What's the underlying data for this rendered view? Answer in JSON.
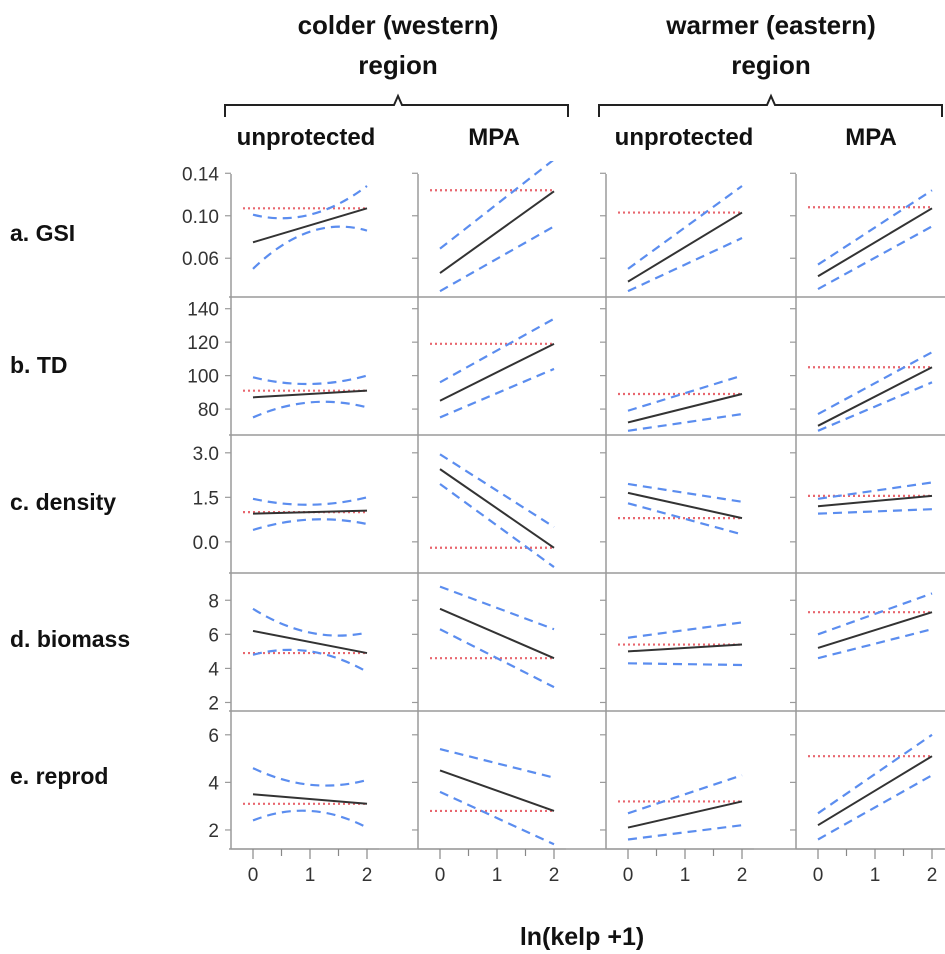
{
  "regions": [
    {
      "line1": "colder (western)",
      "line2": "region"
    },
    {
      "line1": "warmer (eastern)",
      "line2": "region"
    }
  ],
  "columns": [
    "unprotected",
    "MPA",
    "unprotected",
    "MPA"
  ],
  "x_axis_label": "ln(kelp +1)",
  "colors": {
    "fit": "#333333",
    "ci": "#5b8def",
    "reference": "#e8666e",
    "axis": "#9a9a9a"
  },
  "chart_data": {
    "type": "line",
    "title": "",
    "xlabel": "ln(kelp +1)",
    "x_ticks": [
      0,
      1,
      2
    ],
    "x_range": [
      -0.45,
      2.1
    ],
    "rows": [
      {
        "label": "a. GSI",
        "y_ticks": [
          "0.14",
          "0.10",
          "0.06"
        ],
        "y_tick_values": [
          0.14,
          0.1,
          0.06
        ],
        "ylim": [
          0.0235,
          0.1525
        ],
        "panels": [
          {
            "fit": [
              0.075,
              0.107
            ],
            "upper": [
              0.101,
              0.101,
              0.128
            ],
            "lower": [
              0.05,
              0.085,
              0.086
            ],
            "reference": 0.107
          },
          {
            "fit": [
              0.046,
              0.123
            ],
            "upper": [
              0.069,
              0.153
            ],
            "lower": [
              0.029,
              0.09
            ],
            "reference": 0.124
          },
          {
            "fit": [
              0.038,
              0.103
            ],
            "upper": [
              0.05,
              0.128
            ],
            "lower": [
              0.029,
              0.079
            ],
            "reference": 0.103
          },
          {
            "fit": [
              0.043,
              0.107
            ],
            "upper": [
              0.054,
              0.124
            ],
            "lower": [
              0.031,
              0.09
            ],
            "reference": 0.108
          }
        ]
      },
      {
        "label": "b. TD",
        "y_ticks": [
          "140",
          "120",
          "100",
          "80"
        ],
        "y_tick_values": [
          140,
          120,
          100,
          80
        ],
        "ylim": [
          64.5,
          147
        ],
        "panels": [
          {
            "fit": [
              87,
              91
            ],
            "upper": [
              99,
              95,
              100
            ],
            "lower": [
              75,
              84,
              81
            ],
            "reference": 91
          },
          {
            "fit": [
              85,
              119
            ],
            "upper": [
              96,
              134
            ],
            "lower": [
              75,
              104
            ],
            "reference": 119
          },
          {
            "fit": [
              72,
              89
            ],
            "upper": [
              79,
              100
            ],
            "lower": [
              67,
              77
            ],
            "reference": 89
          },
          {
            "fit": [
              70,
              105
            ],
            "upper": [
              77,
              114
            ],
            "lower": [
              67,
              96
            ],
            "reference": 105
          }
        ]
      },
      {
        "label": "c. density",
        "y_ticks": [
          "3.0",
          "1.5",
          "0.0"
        ],
        "y_tick_values": [
          3.0,
          1.5,
          0.0
        ],
        "ylim": [
          -1.05,
          3.6
        ],
        "panels": [
          {
            "fit": [
              0.95,
              1.05
            ],
            "upper": [
              1.45,
              1.25,
              1.5
            ],
            "lower": [
              0.4,
              0.75,
              0.6
            ],
            "reference": 1.0
          },
          {
            "fit": [
              2.45,
              -0.2
            ],
            "upper": [
              2.95,
              0.5
            ],
            "lower": [
              1.95,
              -0.85
            ],
            "reference": -0.2
          },
          {
            "fit": [
              1.65,
              0.8
            ],
            "upper": [
              1.95,
              1.35
            ],
            "lower": [
              1.3,
              0.25
            ],
            "reference": 0.8
          },
          {
            "fit": [
              1.2,
              1.55
            ],
            "upper": [
              1.45,
              2.0
            ],
            "lower": [
              0.95,
              1.1
            ],
            "reference": 1.55
          }
        ]
      },
      {
        "label": "d. biomass",
        "y_ticks": [
          "8",
          "6",
          "4",
          "2"
        ],
        "y_tick_values": [
          8,
          6,
          4,
          2
        ],
        "ylim": [
          1.5,
          9.6
        ],
        "panels": [
          {
            "fit": [
              6.2,
              4.9
            ],
            "upper": [
              7.5,
              6.1,
              6.1
            ],
            "lower": [
              4.8,
              5.0,
              3.8
            ],
            "reference": 4.9
          },
          {
            "fit": [
              7.5,
              4.6
            ],
            "upper": [
              8.8,
              6.3
            ],
            "lower": [
              6.3,
              2.9
            ],
            "reference": 4.6
          },
          {
            "fit": [
              5.0,
              5.4
            ],
            "upper": [
              5.8,
              6.7
            ],
            "lower": [
              4.3,
              4.2
            ],
            "reference": 5.4
          },
          {
            "fit": [
              5.2,
              7.3
            ],
            "upper": [
              6.0,
              8.4
            ],
            "lower": [
              4.6,
              6.3
            ],
            "reference": 7.3
          }
        ]
      },
      {
        "label": "e. reprod",
        "y_ticks": [
          "6",
          "4",
          "2"
        ],
        "y_tick_values": [
          6,
          4,
          2
        ],
        "ylim": [
          1.2,
          7.0
        ],
        "panels": [
          {
            "fit": [
              3.5,
              3.1
            ],
            "upper": [
              4.6,
              3.9,
              4.1
            ],
            "lower": [
              2.4,
              2.8,
              2.1
            ],
            "reference": 3.1
          },
          {
            "fit": [
              4.5,
              2.8
            ],
            "upper": [
              5.4,
              4.2
            ],
            "lower": [
              3.6,
              1.4
            ],
            "reference": 2.8
          },
          {
            "fit": [
              2.1,
              3.2
            ],
            "upper": [
              2.7,
              4.3
            ],
            "lower": [
              1.6,
              2.2
            ],
            "reference": 3.2
          },
          {
            "fit": [
              2.2,
              5.1
            ],
            "upper": [
              2.7,
              6.0
            ],
            "lower": [
              1.6,
              4.3
            ],
            "reference": 5.1
          }
        ]
      }
    ]
  }
}
